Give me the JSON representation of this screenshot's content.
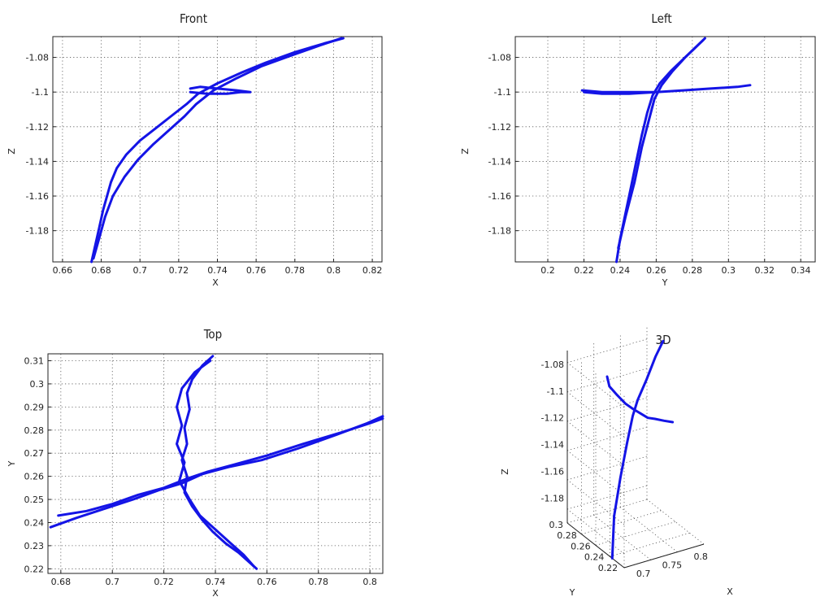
{
  "chart_data": [
    {
      "type": "line",
      "title": "Front",
      "xlabel": "X",
      "ylabel": "Z",
      "xlim": [
        0.655,
        0.825
      ],
      "ylim": [
        -1.198,
        -1.068
      ],
      "xticks": [
        0.66,
        0.68,
        0.7,
        0.72,
        0.74,
        0.76,
        0.78,
        0.8,
        0.82
      ],
      "yticks": [
        -1.08,
        -1.1,
        -1.12,
        -1.14,
        -1.16,
        -1.18
      ],
      "xtick_labels": [
        "0.66",
        "0.68",
        "0.7",
        "0.72",
        "0.74",
        "0.76",
        "0.78",
        "0.8",
        "0.82"
      ],
      "ytick_labels": [
        "-1.08",
        "-1.1",
        "-1.12",
        "-1.14",
        "-1.16",
        "-1.18"
      ],
      "grid": true,
      "series": [
        {
          "x": [
            0.675,
            0.677,
            0.679,
            0.681,
            0.683,
            0.685,
            0.688,
            0.693,
            0.7,
            0.708,
            0.716,
            0.724,
            0.73,
            0.74,
            0.752,
            0.765,
            0.78,
            0.795,
            0.805
          ],
          "y": [
            -1.198,
            -1.188,
            -1.178,
            -1.168,
            -1.16,
            -1.152,
            -1.144,
            -1.136,
            -1.128,
            -1.121,
            -1.114,
            -1.107,
            -1.101,
            -1.095,
            -1.089,
            -1.083,
            -1.077,
            -1.072,
            -1.069
          ]
        },
        {
          "x": [
            0.676,
            0.679,
            0.682,
            0.686,
            0.692,
            0.699,
            0.707,
            0.715,
            0.723,
            0.729,
            0.738,
            0.75,
            0.763,
            0.778,
            0.793,
            0.804
          ],
          "y": [
            -1.196,
            -1.184,
            -1.172,
            -1.16,
            -1.149,
            -1.139,
            -1.13,
            -1.122,
            -1.114,
            -1.107,
            -1.099,
            -1.092,
            -1.085,
            -1.079,
            -1.073,
            -1.069
          ]
        },
        {
          "x": [
            0.726,
            0.735,
            0.745,
            0.752,
            0.757,
            0.75,
            0.74,
            0.731,
            0.726
          ],
          "y": [
            -1.1,
            -1.101,
            -1.101,
            -1.1,
            -1.1,
            -1.099,
            -1.098,
            -1.097,
            -1.098
          ]
        }
      ]
    },
    {
      "type": "line",
      "title": "Left",
      "xlabel": "Y",
      "ylabel": "Z",
      "xlim": [
        0.182,
        0.348
      ],
      "ylim": [
        -1.198,
        -1.068
      ],
      "xticks": [
        0.2,
        0.22,
        0.24,
        0.26,
        0.28,
        0.3,
        0.32,
        0.34
      ],
      "yticks": [
        -1.08,
        -1.1,
        -1.12,
        -1.14,
        -1.16,
        -1.18
      ],
      "xtick_labels": [
        "0.2",
        "0.22",
        "0.24",
        "0.26",
        "0.28",
        "0.3",
        "0.32",
        "0.34"
      ],
      "ytick_labels": [
        "-1.08",
        "-1.1",
        "-1.12",
        "-1.14",
        "-1.16",
        "-1.18"
      ],
      "grid": true,
      "series": [
        {
          "x": [
            0.238,
            0.24,
            0.243,
            0.246,
            0.249,
            0.252,
            0.255,
            0.258,
            0.262,
            0.268,
            0.275,
            0.282,
            0.287
          ],
          "y": [
            -1.198,
            -1.185,
            -1.17,
            -1.155,
            -1.14,
            -1.125,
            -1.112,
            -1.102,
            -1.095,
            -1.088,
            -1.081,
            -1.074,
            -1.069
          ]
        },
        {
          "x": [
            0.239,
            0.243,
            0.248,
            0.252,
            0.256,
            0.259,
            0.263,
            0.269,
            0.276,
            0.283,
            0.286
          ],
          "y": [
            -1.19,
            -1.172,
            -1.152,
            -1.132,
            -1.116,
            -1.104,
            -1.096,
            -1.088,
            -1.08,
            -1.073,
            -1.07
          ]
        },
        {
          "x": [
            0.219,
            0.23,
            0.245,
            0.26,
            0.275,
            0.29,
            0.305,
            0.312,
            0.305,
            0.29,
            0.275,
            0.26,
            0.245,
            0.23,
            0.22
          ],
          "y": [
            -1.099,
            -1.1,
            -1.1,
            -1.1,
            -1.099,
            -1.098,
            -1.097,
            -1.096,
            -1.097,
            -1.098,
            -1.099,
            -1.1,
            -1.101,
            -1.101,
            -1.1
          ]
        }
      ]
    },
    {
      "type": "line",
      "title": "Top",
      "xlabel": "X",
      "ylabel": "Y",
      "xlim": [
        0.675,
        0.805
      ],
      "ylim": [
        0.218,
        0.313
      ],
      "xticks": [
        0.68,
        0.7,
        0.72,
        0.74,
        0.76,
        0.78,
        0.8
      ],
      "yticks": [
        0.22,
        0.23,
        0.24,
        0.25,
        0.26,
        0.27,
        0.28,
        0.29,
        0.3,
        0.31
      ],
      "xtick_labels": [
        "0.68",
        "0.7",
        "0.72",
        "0.74",
        "0.76",
        "0.78",
        "0.8"
      ],
      "ytick_labels": [
        "0.22",
        "0.23",
        "0.24",
        "0.25",
        "0.26",
        "0.27",
        "0.28",
        "0.29",
        "0.3",
        "0.31"
      ],
      "grid": true,
      "series": [
        {
          "x": [
            0.739,
            0.735,
            0.731,
            0.729,
            0.73,
            0.728,
            0.729,
            0.727,
            0.729,
            0.728,
            0.731,
            0.735,
            0.739,
            0.744,
            0.749,
            0.753,
            0.756
          ],
          "y": [
            0.312,
            0.308,
            0.302,
            0.296,
            0.289,
            0.281,
            0.274,
            0.267,
            0.26,
            0.253,
            0.247,
            0.241,
            0.236,
            0.231,
            0.227,
            0.223,
            0.22
          ]
        },
        {
          "x": [
            0.738,
            0.732,
            0.727,
            0.725,
            0.727,
            0.725,
            0.728,
            0.726,
            0.73,
            0.734,
            0.74,
            0.746,
            0.751,
            0.755
          ],
          "y": [
            0.31,
            0.305,
            0.298,
            0.29,
            0.282,
            0.274,
            0.266,
            0.258,
            0.25,
            0.243,
            0.237,
            0.231,
            0.226,
            0.221
          ]
        },
        {
          "x": [
            0.676,
            0.686,
            0.697,
            0.708,
            0.718,
            0.727,
            0.735,
            0.745,
            0.758,
            0.772,
            0.787,
            0.799,
            0.805
          ],
          "y": [
            0.238,
            0.242,
            0.246,
            0.25,
            0.254,
            0.257,
            0.261,
            0.264,
            0.267,
            0.272,
            0.278,
            0.283,
            0.286
          ]
        },
        {
          "x": [
            0.679,
            0.69,
            0.7,
            0.71,
            0.72,
            0.729,
            0.737,
            0.747,
            0.76,
            0.774,
            0.789,
            0.8,
            0.805
          ],
          "y": [
            0.243,
            0.245,
            0.248,
            0.252,
            0.255,
            0.259,
            0.262,
            0.265,
            0.269,
            0.274,
            0.279,
            0.283,
            0.285
          ]
        }
      ]
    },
    {
      "type": "line",
      "title": "3D",
      "xlabel": "X",
      "ylabel": "Y",
      "zlabel": "Z",
      "xtick_labels": [
        "0.7",
        "0.75",
        "0.8"
      ],
      "ytick_labels": [
        "0.3",
        "0.28",
        "0.26",
        "0.24",
        "0.22"
      ],
      "ztick_labels": [
        "-1.08",
        "-1.1",
        "-1.12",
        "-1.14",
        "-1.16",
        "-1.18"
      ],
      "grid": true,
      "series": [
        {
          "x": [
            0.675,
            0.685,
            0.7,
            0.715,
            0.728,
            0.74,
            0.76,
            0.785,
            0.805
          ],
          "y": [
            0.238,
            0.245,
            0.25,
            0.254,
            0.258,
            0.262,
            0.268,
            0.278,
            0.286
          ],
          "z": [
            -1.198,
            -1.17,
            -1.145,
            -1.122,
            -1.105,
            -1.096,
            -1.086,
            -1.075,
            -1.069
          ]
        },
        {
          "x": [
            0.739,
            0.731,
            0.729,
            0.728,
            0.729,
            0.731,
            0.735,
            0.74,
            0.748,
            0.756
          ],
          "y": [
            0.312,
            0.3,
            0.285,
            0.27,
            0.258,
            0.248,
            0.24,
            0.233,
            0.226,
            0.22
          ],
          "z": [
            -1.096,
            -1.098,
            -1.099,
            -1.1,
            -1.1,
            -1.1,
            -1.101,
            -1.1,
            -1.1,
            -1.1
          ]
        }
      ]
    }
  ],
  "colors": {
    "trace": "#1414e6",
    "axes": "#222222",
    "grid": "#555555",
    "background": "#ffffff"
  }
}
